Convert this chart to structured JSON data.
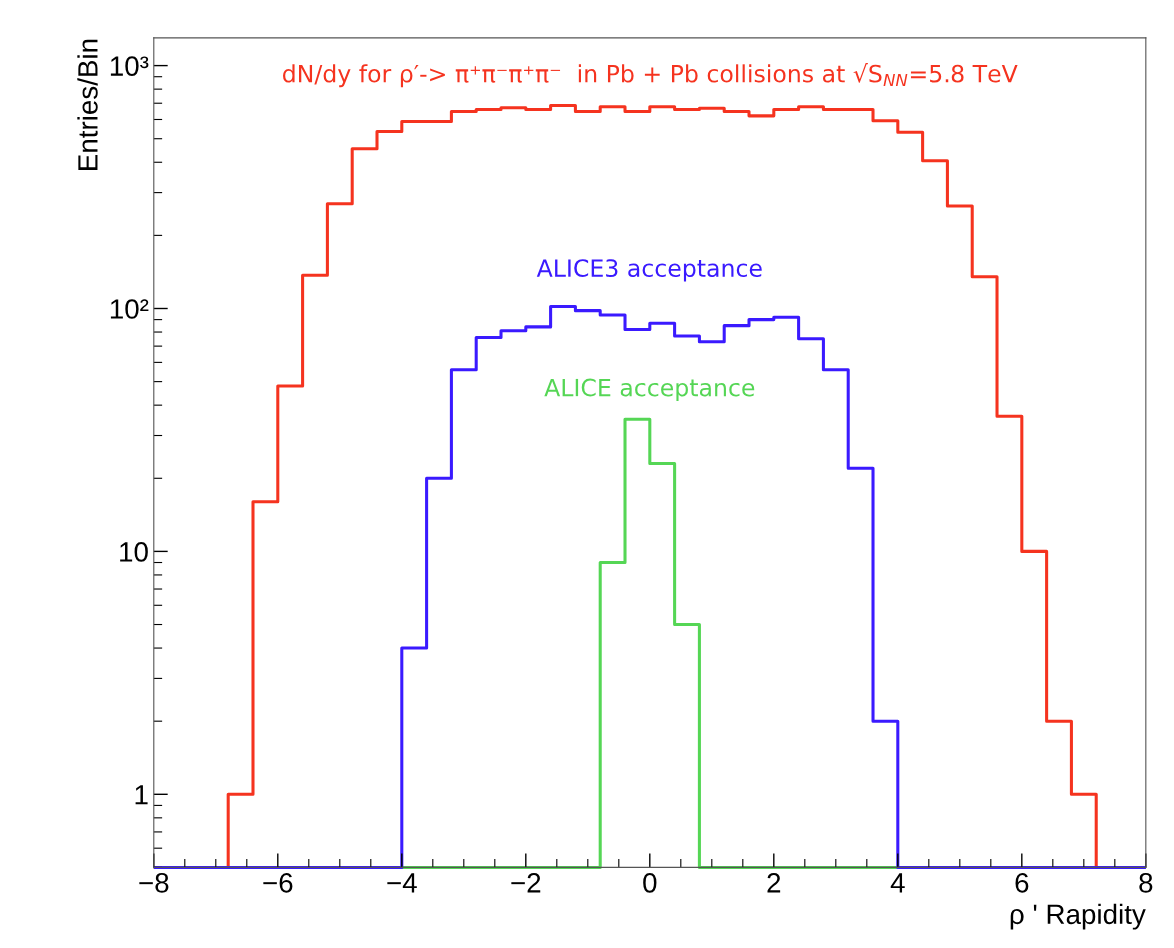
{
  "chart_data": {
    "type": "histogram",
    "ylabel": "Entries/Bin",
    "xlabel": "ρ ' Rapidity",
    "bins": [
      -8.0,
      -7.6,
      -7.2,
      -6.8,
      -6.4,
      -6.0,
      -5.6,
      -5.2,
      -4.8,
      -4.4,
      -4.0,
      -3.6,
      -3.2,
      -2.8,
      -2.4,
      -2.0,
      -1.6,
      -1.2,
      -0.8,
      -0.4,
      0.0,
      0.4,
      0.8,
      1.2,
      1.6,
      2.0,
      2.4,
      2.8,
      3.2,
      3.6,
      4.0,
      4.4,
      4.8,
      5.2,
      5.6,
      6.0,
      6.4,
      6.8,
      7.2,
      7.6,
      8.0
    ],
    "series": [
      {
        "name": "dN/dy for ρ′-> π⁺π⁻π⁺π⁻  in Pb + Pb collisions at √S$_{NN}$=5.8 TeV",
        "color": "#f5331f",
        "values": [
          null,
          null,
          null,
          1,
          16,
          48,
          137,
          270,
          455,
          535,
          589,
          589,
          647,
          659,
          671,
          660,
          685,
          647,
          677,
          647,
          677,
          660,
          667,
          647,
          621,
          660,
          677,
          660,
          660,
          593,
          532,
          406,
          264,
          135,
          36,
          10,
          2,
          1,
          null,
          null
        ]
      },
      {
        "name": "ALICE acceptance",
        "color": "#55d655",
        "values": [
          null,
          null,
          null,
          null,
          null,
          null,
          null,
          null,
          null,
          null,
          null,
          null,
          null,
          null,
          null,
          null,
          null,
          null,
          9,
          35,
          23,
          5,
          null,
          null,
          null,
          null,
          null,
          null,
          null,
          null,
          null,
          null,
          null,
          null,
          null,
          null,
          null,
          null,
          null,
          null
        ]
      },
      {
        "name": "ALICE3 acceptance",
        "color": "#3a1aff",
        "values": [
          null,
          null,
          null,
          null,
          null,
          null,
          null,
          null,
          null,
          null,
          4,
          20,
          56,
          76,
          81,
          84,
          102,
          98,
          94,
          82,
          87,
          77,
          73,
          85,
          90,
          92,
          75,
          56,
          22,
          2,
          null,
          null,
          null,
          null,
          null,
          null,
          null,
          null,
          null,
          null
        ]
      }
    ],
    "log": "y",
    "grid": false,
    "xlim": [
      -8,
      8
    ],
    "xticks": [
      {
        "value": -8,
        "label": "−8"
      },
      {
        "value": -6,
        "label": "−6"
      },
      {
        "value": -4,
        "label": "−4"
      },
      {
        "value": -2,
        "label": "−2"
      },
      0,
      2,
      4,
      6,
      8
    ],
    "ylim": [
      0.5,
      1300
    ],
    "yticks": [
      1,
      10,
      {
        "value": 100,
        "label": "10²"
      },
      {
        "value": 1000,
        "label": "10³"
      }
    ]
  }
}
